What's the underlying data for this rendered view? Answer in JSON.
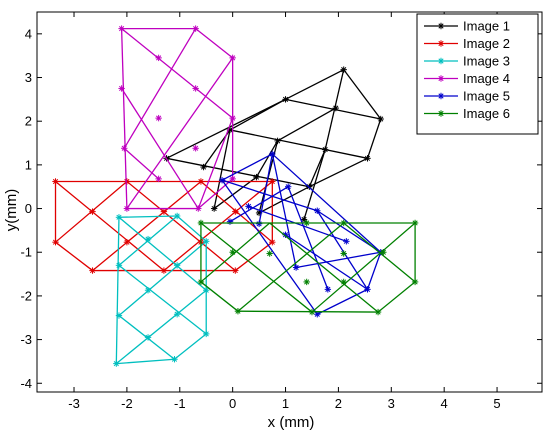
{
  "chart_data": {
    "type": "line",
    "xlabel": "x (mm)",
    "ylabel": "y(mm)",
    "xlim": [
      -3.7,
      5.85
    ],
    "ylim": [
      -4.2,
      4.5
    ],
    "xticks": [
      -3,
      -2,
      -1,
      0,
      1,
      2,
      3,
      4,
      5
    ],
    "yticks": [
      -4,
      -3,
      -2,
      -1,
      0,
      1,
      2,
      3,
      4
    ],
    "legend_position": "top-right",
    "series": [
      {
        "name": "Image 1",
        "color": "#000000",
        "points": [
          [
            -1.25,
            1.15
          ],
          [
            -0.55,
            0.95
          ],
          [
            0.45,
            0.72
          ],
          [
            1.45,
            0.5
          ],
          [
            -0.05,
            1.8
          ],
          [
            0.85,
            1.55
          ],
          [
            1.75,
            1.35
          ],
          [
            2.55,
            1.15
          ],
          [
            1.0,
            2.5
          ],
          [
            1.95,
            2.3
          ],
          [
            2.8,
            2.05
          ],
          [
            2.1,
            3.18
          ],
          [
            -0.35,
            0.0
          ],
          [
            0.5,
            -0.1
          ],
          [
            1.35,
            -0.25
          ]
        ],
        "segments": [
          [
            -1.25,
            1.15,
            1.45,
            0.5
          ],
          [
            -0.05,
            1.8,
            2.55,
            1.15
          ],
          [
            1.0,
            2.5,
            2.8,
            2.05
          ],
          [
            -1.25,
            1.15,
            1.0,
            2.5
          ],
          [
            1.0,
            2.5,
            2.1,
            3.18
          ],
          [
            2.1,
            3.18,
            2.8,
            2.05
          ],
          [
            2.8,
            2.05,
            2.55,
            1.15
          ],
          [
            2.55,
            1.15,
            1.45,
            0.5
          ],
          [
            -0.55,
            0.95,
            -0.05,
            1.8
          ],
          [
            -0.05,
            1.8,
            1.0,
            2.5
          ],
          [
            0.45,
            0.72,
            0.85,
            1.55
          ],
          [
            0.85,
            1.55,
            1.95,
            2.3
          ],
          [
            1.45,
            0.5,
            1.75,
            1.35
          ],
          [
            1.75,
            1.35,
            2.1,
            3.18
          ],
          [
            -0.35,
            0.0,
            -0.05,
            1.8
          ],
          [
            0.5,
            -0.1,
            0.85,
            1.55
          ],
          [
            1.35,
            -0.25,
            1.75,
            1.35
          ],
          [
            -0.35,
            0.0,
            0.45,
            0.72
          ],
          [
            0.5,
            -0.1,
            1.45,
            0.5
          ]
        ]
      },
      {
        "name": "Image 2",
        "color": "#e00000",
        "points": [
          [
            -3.35,
            0.62
          ],
          [
            -2.0,
            0.62
          ],
          [
            -0.6,
            0.62
          ],
          [
            0.75,
            0.62
          ],
          [
            -2.65,
            -0.07
          ],
          [
            -1.3,
            -0.07
          ],
          [
            0.05,
            -0.07
          ],
          [
            -3.35,
            -0.77
          ],
          [
            -2.0,
            -0.77
          ],
          [
            -0.6,
            -0.77
          ],
          [
            0.75,
            -0.77
          ],
          [
            -2.65,
            -1.42
          ],
          [
            -1.3,
            -1.42
          ],
          [
            0.05,
            -1.42
          ]
        ],
        "segments": [
          [
            -3.35,
            0.62,
            0.75,
            0.62
          ],
          [
            -3.35,
            0.62,
            -3.35,
            -0.77
          ],
          [
            -3.35,
            -0.77,
            -2.65,
            -1.42
          ],
          [
            -2.65,
            -1.42,
            0.05,
            -1.42
          ],
          [
            0.05,
            -1.42,
            0.75,
            -0.77
          ],
          [
            0.75,
            -0.77,
            0.75,
            0.62
          ],
          [
            -3.35,
            0.62,
            -1.3,
            -1.42
          ],
          [
            -2.0,
            0.62,
            0.05,
            -1.42
          ],
          [
            -0.6,
            0.62,
            0.75,
            -0.77
          ],
          [
            -3.35,
            -0.77,
            -2.0,
            0.62
          ],
          [
            -2.65,
            -1.42,
            -0.6,
            0.62
          ],
          [
            -1.3,
            -1.42,
            0.75,
            0.62
          ]
        ]
      },
      {
        "name": "Image 3",
        "color": "#00bfbf",
        "points": [
          [
            -2.15,
            -0.2
          ],
          [
            -1.05,
            -0.17
          ],
          [
            -1.6,
            -0.7
          ],
          [
            -2.15,
            -1.3
          ],
          [
            -1.05,
            -1.3
          ],
          [
            -0.5,
            -0.75
          ],
          [
            -1.6,
            -1.87
          ],
          [
            -0.5,
            -1.87
          ],
          [
            -2.15,
            -2.45
          ],
          [
            -1.05,
            -2.42
          ],
          [
            -1.6,
            -2.95
          ],
          [
            -0.5,
            -2.87
          ],
          [
            -2.2,
            -3.55
          ],
          [
            -1.1,
            -3.45
          ]
        ],
        "segments": [
          [
            -2.15,
            -0.2,
            -1.05,
            -0.17
          ],
          [
            -2.15,
            -0.2,
            -2.2,
            -3.55
          ],
          [
            -2.2,
            -3.55,
            -1.1,
            -3.45
          ],
          [
            -1.1,
            -3.45,
            -0.5,
            -2.87
          ],
          [
            -0.5,
            -2.87,
            -0.5,
            -0.75
          ],
          [
            -0.5,
            -0.75,
            -1.05,
            -0.17
          ],
          [
            -2.15,
            -0.2,
            -0.5,
            -1.87
          ],
          [
            -2.15,
            -1.3,
            -0.5,
            -2.87
          ],
          [
            -2.15,
            -2.45,
            -1.1,
            -3.45
          ],
          [
            -1.05,
            -0.17,
            -2.15,
            -1.3
          ],
          [
            -0.5,
            -0.75,
            -2.15,
            -2.45
          ],
          [
            -0.5,
            -1.87,
            -2.2,
            -3.55
          ]
        ]
      },
      {
        "name": "Image 4",
        "color": "#bf00bf",
        "points": [
          [
            -2.1,
            4.12
          ],
          [
            -0.7,
            4.12
          ],
          [
            -1.4,
            3.45
          ],
          [
            0.0,
            3.45
          ],
          [
            -2.1,
            2.75
          ],
          [
            -0.7,
            2.75
          ],
          [
            -1.4,
            2.07
          ],
          [
            0.0,
            2.07
          ],
          [
            -2.05,
            1.38
          ],
          [
            -0.7,
            1.38
          ],
          [
            -1.4,
            0.68
          ],
          [
            0.0,
            0.68
          ],
          [
            -2.0,
            0.0
          ],
          [
            -0.65,
            0.0
          ]
        ],
        "segments": [
          [
            -2.1,
            4.12,
            -0.7,
            4.12
          ],
          [
            -0.7,
            4.12,
            0.0,
            3.45
          ],
          [
            0.0,
            3.45,
            0.0,
            0.68
          ],
          [
            0.0,
            0.68,
            -0.65,
            0.0
          ],
          [
            -0.65,
            0.0,
            -2.0,
            0.0
          ],
          [
            -2.0,
            0.0,
            -2.1,
            4.12
          ],
          [
            -2.1,
            4.12,
            0.0,
            2.07
          ],
          [
            -2.1,
            2.75,
            -0.65,
            0.0
          ],
          [
            -2.05,
            1.38,
            -1.4,
            0.68
          ],
          [
            -0.7,
            4.12,
            -2.05,
            1.38
          ],
          [
            0.0,
            3.45,
            -2.0,
            0.0
          ],
          [
            0.0,
            2.07,
            -0.65,
            0.0
          ]
        ]
      },
      {
        "name": "Image 5",
        "color": "#0000cc",
        "points": [
          [
            -0.2,
            0.65
          ],
          [
            0.75,
            1.25
          ],
          [
            0.3,
            0.05
          ],
          [
            1.0,
            -0.6
          ],
          [
            1.6,
            -0.05
          ],
          [
            2.15,
            -0.75
          ],
          [
            2.8,
            -1.0
          ],
          [
            1.2,
            -1.35
          ],
          [
            1.8,
            -1.85
          ],
          [
            2.55,
            -1.85
          ],
          [
            1.6,
            -2.42
          ],
          [
            -0.05,
            -0.3
          ],
          [
            0.5,
            -0.35
          ],
          [
            1.05,
            0.5
          ]
        ],
        "segments": [
          [
            -0.2,
            0.65,
            0.75,
            1.25
          ],
          [
            0.75,
            1.25,
            2.8,
            -1.0
          ],
          [
            2.8,
            -1.0,
            2.55,
            -1.85
          ],
          [
            2.55,
            -1.85,
            1.6,
            -2.42
          ],
          [
            1.6,
            -2.42,
            -0.2,
            0.65
          ],
          [
            -0.2,
            0.65,
            1.6,
            -0.05
          ],
          [
            1.6,
            -0.05,
            2.8,
            -1.0
          ],
          [
            0.3,
            0.05,
            2.15,
            -0.75
          ],
          [
            0.75,
            1.25,
            1.2,
            -1.35
          ],
          [
            1.05,
            0.5,
            1.8,
            -1.85
          ],
          [
            1.6,
            -0.05,
            2.55,
            -1.85
          ],
          [
            -0.05,
            -0.3,
            1.05,
            0.5
          ],
          [
            0.5,
            -0.35,
            0.75,
            1.25
          ],
          [
            1.2,
            -1.35,
            2.8,
            -1.0
          ],
          [
            1.0,
            -0.6,
            2.55,
            -1.85
          ]
        ]
      },
      {
        "name": "Image 6",
        "color": "#008000",
        "points": [
          [
            -0.6,
            -0.33
          ],
          [
            0.0,
            -1.0
          ],
          [
            -0.6,
            -1.68
          ],
          [
            0.1,
            -2.35
          ],
          [
            0.7,
            -1.03
          ],
          [
            1.4,
            -0.33
          ],
          [
            1.4,
            -1.68
          ],
          [
            2.1,
            -1.03
          ],
          [
            1.5,
            -2.37
          ],
          [
            2.1,
            -0.33
          ],
          [
            2.85,
            -1.0
          ],
          [
            2.1,
            -1.68
          ],
          [
            2.75,
            -2.37
          ],
          [
            3.45,
            -0.33
          ],
          [
            3.45,
            -1.68
          ]
        ],
        "segments": [
          [
            -0.6,
            -0.33,
            3.45,
            -0.33
          ],
          [
            -0.6,
            -0.33,
            -0.6,
            -1.68
          ],
          [
            -0.6,
            -1.68,
            0.1,
            -2.35
          ],
          [
            0.1,
            -2.35,
            2.75,
            -2.37
          ],
          [
            2.75,
            -2.37,
            3.45,
            -1.68
          ],
          [
            3.45,
            -1.68,
            3.45,
            -0.33
          ],
          [
            -0.6,
            -0.33,
            1.5,
            -2.37
          ],
          [
            0.7,
            -0.33,
            2.75,
            -2.37
          ],
          [
            2.1,
            -0.33,
            3.45,
            -1.68
          ],
          [
            -0.6,
            -1.68,
            0.7,
            -0.33
          ],
          [
            0.1,
            -2.35,
            2.1,
            -0.33
          ],
          [
            1.5,
            -2.37,
            3.45,
            -0.33
          ]
        ]
      }
    ]
  }
}
